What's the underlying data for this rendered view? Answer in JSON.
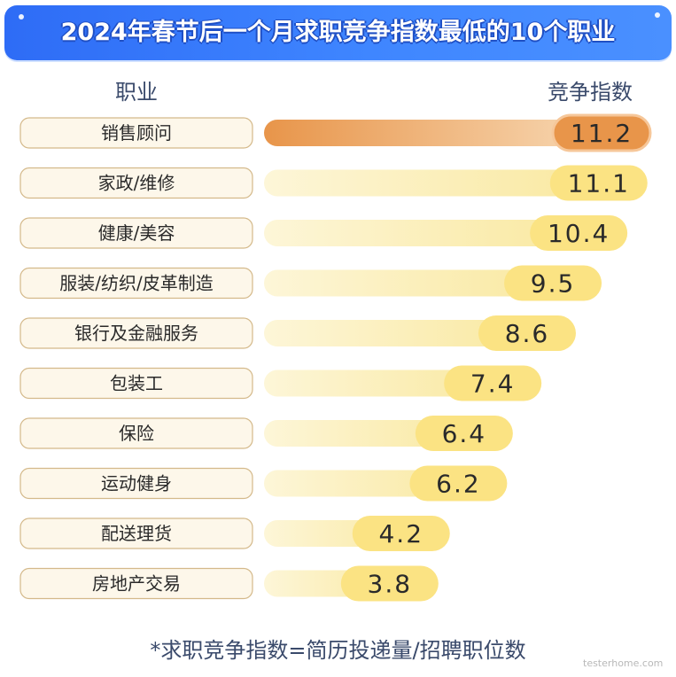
{
  "header": {
    "title": "2024年春节后一个月求职竞争指数最低的10个职业"
  },
  "columns": {
    "left_label": "职业",
    "right_label": "竞争指数"
  },
  "footnote": "*求职竞争指数=简历投递量/招聘职位数",
  "watermark": "testerhome.com",
  "colors": {
    "banner_start": "#2e6cf6",
    "banner_end": "#4a90ff",
    "bar_light": "#f9e79a",
    "bar_light_fade": "#fdf6d8",
    "bar_top": "#e8954a",
    "bar_top_fade": "#f9e0c0",
    "pill_light": "#fbe383",
    "pill_top": "#e8954a",
    "label_fill": "#fdf7ea",
    "label_stroke": "#d4b98a",
    "text_dark": "#2a2a2a"
  },
  "chart_data": {
    "type": "bar",
    "orientation": "horizontal",
    "title": "2024年春节后一个月求职竞争指数最低的10个职业",
    "xlabel": "竞争指数",
    "ylabel": "职业",
    "categories": [
      "销售顾问",
      "家政/维修",
      "健康/美容",
      "服装/纺织/皮革制造",
      "银行及金融服务",
      "包装工",
      "保险",
      "运动健身",
      "配送理货",
      "房地产交易"
    ],
    "values": [
      11.2,
      11.1,
      10.4,
      9.5,
      8.6,
      7.4,
      6.4,
      6.2,
      4.2,
      3.8
    ],
    "labels": [
      "11.2",
      "11.1",
      "10.4",
      "9.5",
      "8.6",
      "7.4",
      "6.4",
      "6.2",
      "4.2",
      "3.8"
    ],
    "highlight_index": 0,
    "grid": false,
    "legend": "none"
  }
}
